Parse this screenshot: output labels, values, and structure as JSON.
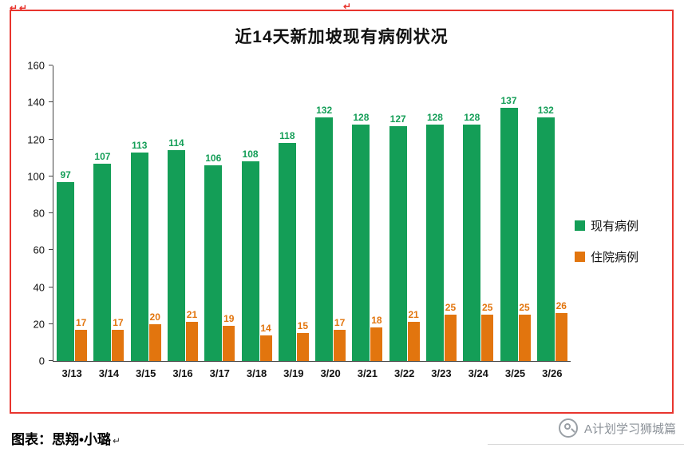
{
  "page": {
    "edit_marks": {
      "left_a": "↵",
      "left_b": "↵",
      "center": "↵"
    },
    "caption_label": "图表：",
    "caption_value": "思翔•小璐",
    "caption_mark": "↵"
  },
  "watermark": {
    "icon": "magnifier-logo",
    "text": "A计划学习狮城篇"
  },
  "chart_data": {
    "type": "bar",
    "title": "近14天新加坡现有病例状况",
    "categories": [
      "3/13",
      "3/14",
      "3/15",
      "3/16",
      "3/17",
      "3/18",
      "3/19",
      "3/20",
      "3/21",
      "3/22",
      "3/23",
      "3/24",
      "3/25",
      "3/26"
    ],
    "series": [
      {
        "name": "现有病例",
        "color": "#149e57",
        "values": [
          97,
          107,
          113,
          114,
          106,
          108,
          118,
          132,
          128,
          127,
          128,
          128,
          137,
          132
        ]
      },
      {
        "name": "住院病例",
        "color": "#e2750e",
        "values": [
          17,
          17,
          20,
          21,
          19,
          14,
          15,
          17,
          18,
          21,
          25,
          25,
          25,
          26
        ]
      }
    ],
    "xlabel": "",
    "ylabel": "",
    "ylim": [
      0,
      160
    ],
    "yticks": [
      0,
      20,
      40,
      60,
      80,
      100,
      120,
      140,
      160
    ],
    "grid": false,
    "legend_position": "right",
    "frame_color": "#e8352e"
  }
}
